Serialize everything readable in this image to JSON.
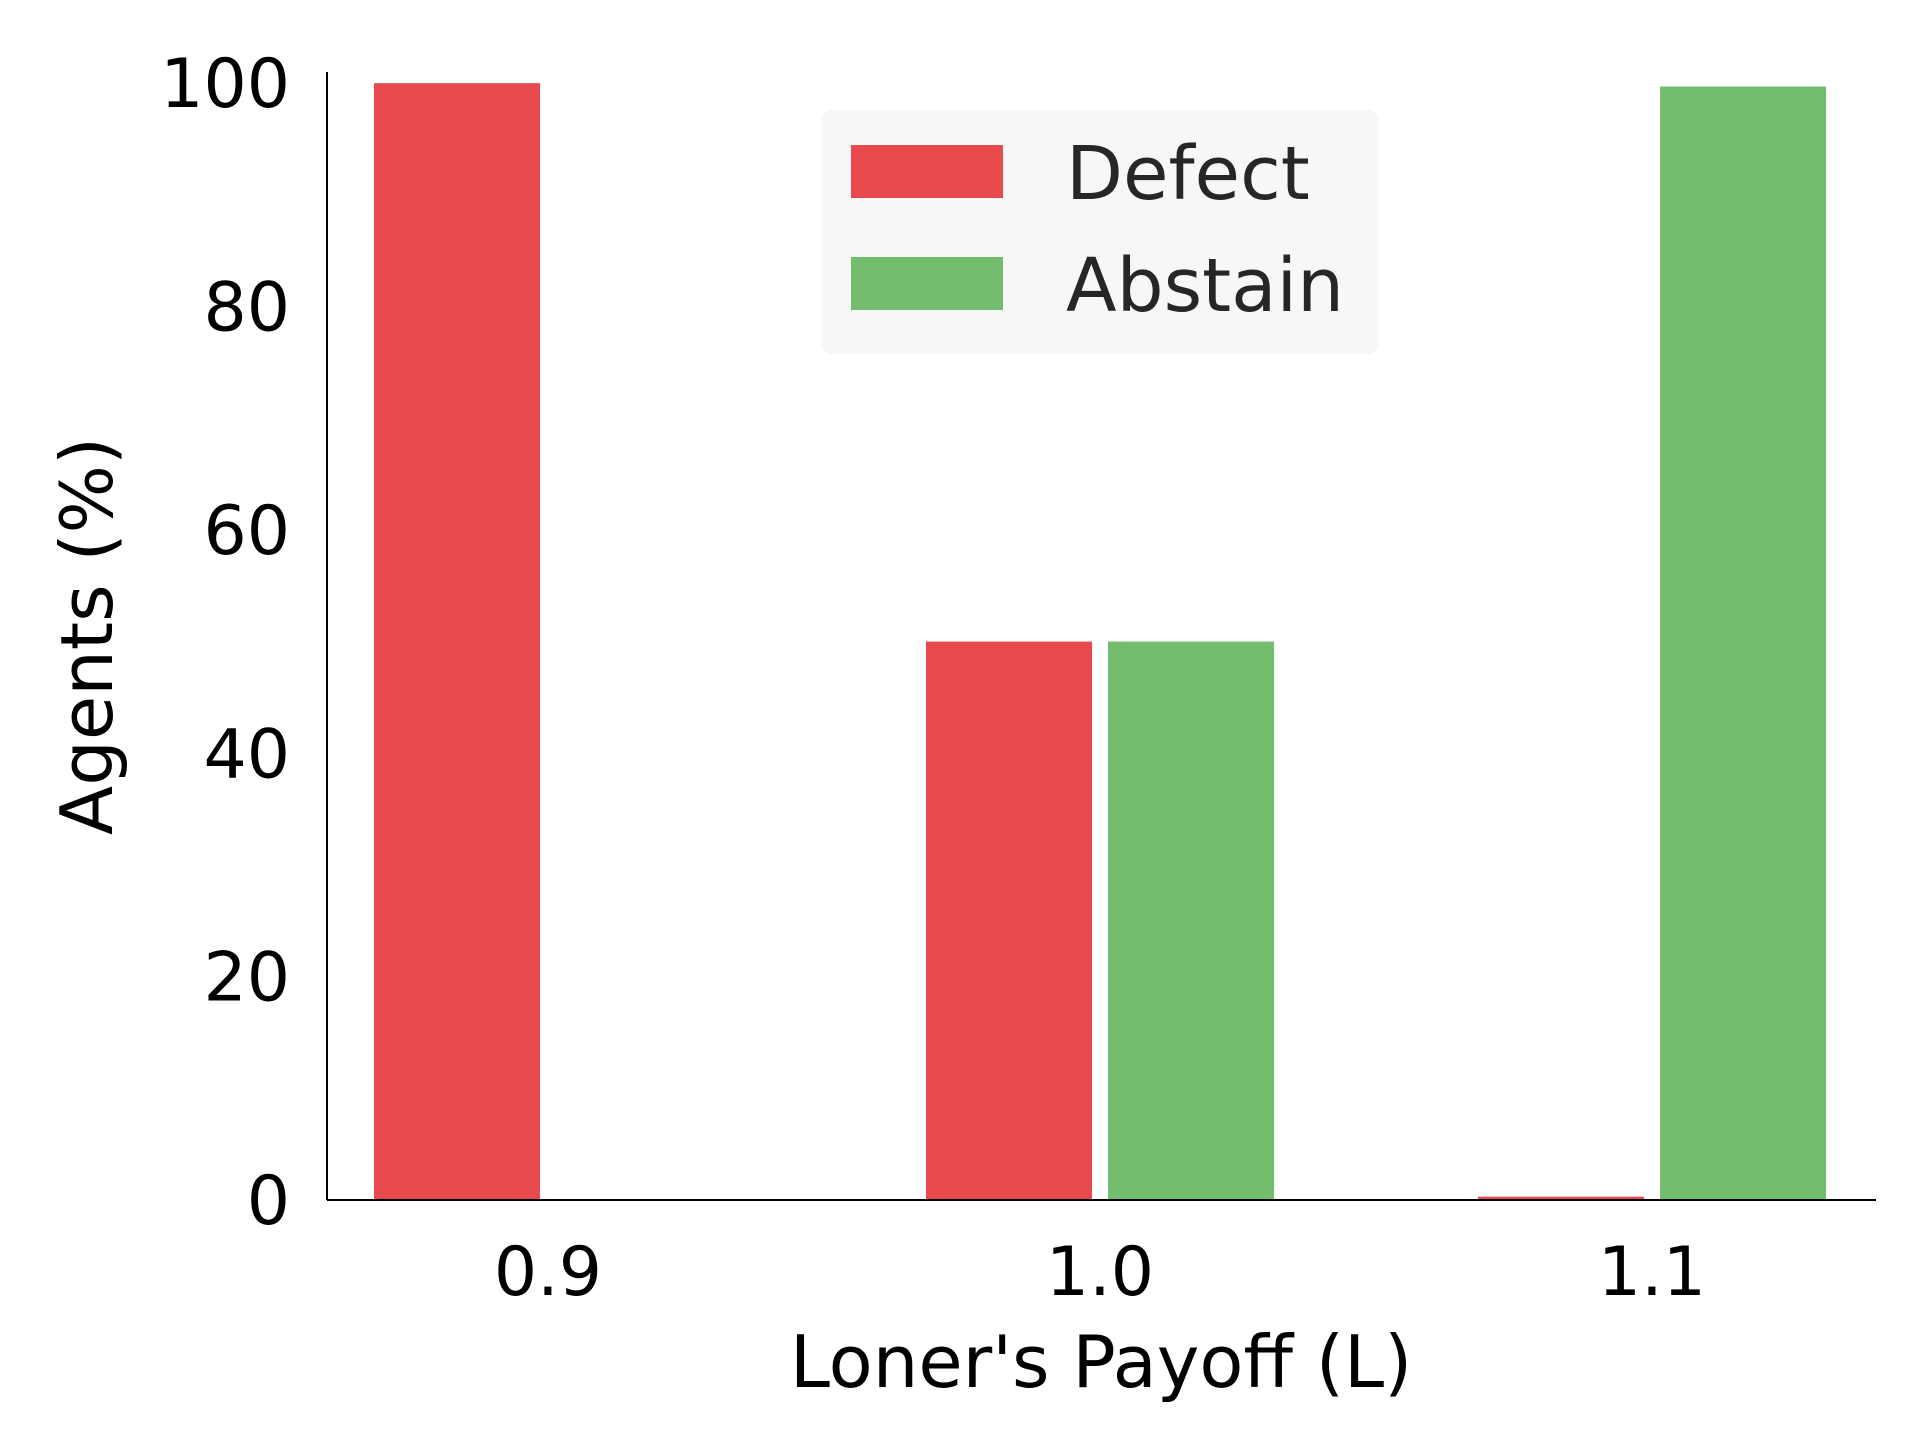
{
  "chart_data": {
    "type": "bar",
    "categories": [
      "0.9",
      "1.0",
      "1.1"
    ],
    "series": [
      {
        "name": "Defect",
        "color": "#e8494c",
        "values": [
          100,
          50,
          0.3
        ]
      },
      {
        "name": "Abstain",
        "color": "#73bd6e",
        "values": [
          0,
          50,
          99.7
        ]
      }
    ],
    "title": "",
    "xlabel": "Loner's Payoff (L)",
    "ylabel": "Agents (%)",
    "ylim": [
      0,
      101
    ],
    "yticks": [
      0,
      20,
      40,
      60,
      80,
      100
    ],
    "grid": false,
    "legend_position": "top-center"
  }
}
